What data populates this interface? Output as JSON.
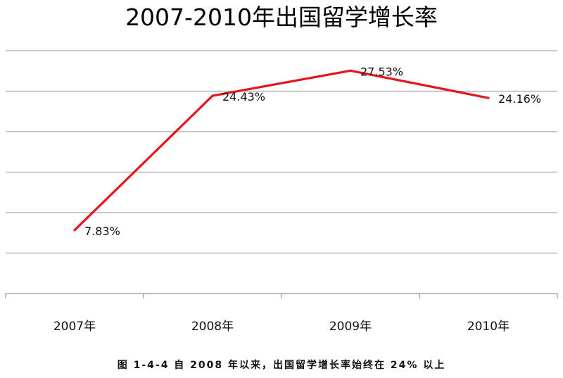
{
  "chart_data": {
    "type": "line",
    "title": "2007-2010年出国留学增长率",
    "categories": [
      "2007年",
      "2008年",
      "2009年",
      "2010年"
    ],
    "series": [
      {
        "values": [
          7.83,
          24.43,
          27.53,
          24.16
        ],
        "labels": [
          "7.83%",
          "24.43%",
          "27.53%",
          "24.16%"
        ],
        "color": "#e8141c"
      }
    ],
    "ylim": [
      0,
      30
    ],
    "y_gridlines": [
      5,
      10,
      15,
      20,
      25,
      30
    ],
    "grid": true,
    "axis_color": "#a6a6a6",
    "legend": "none"
  },
  "caption": "图 1-4-4 自 2008 年以来，出国留学增长率始终在 24% 以上"
}
